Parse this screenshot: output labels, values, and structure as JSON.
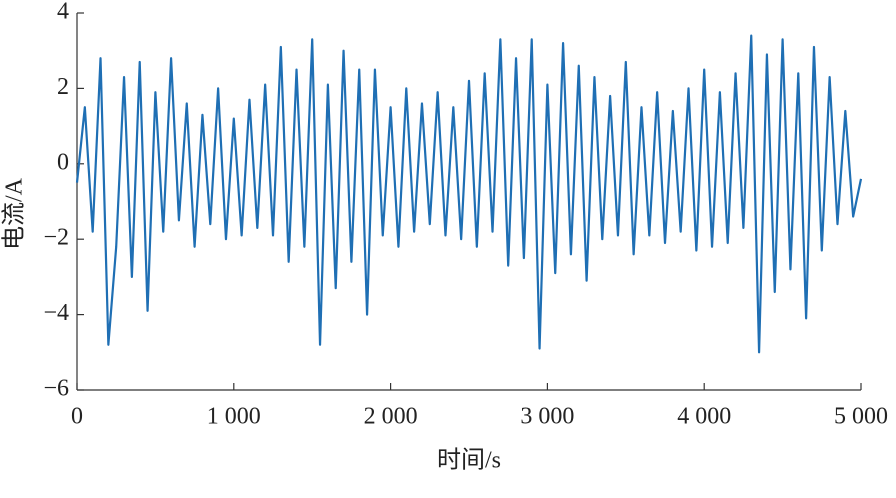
{
  "chart_data": {
    "type": "line",
    "xlabel": "时间/s",
    "ylabel": "电流/A",
    "x": [
      0,
      50,
      100,
      150,
      200,
      250,
      300,
      350,
      400,
      450,
      500,
      550,
      600,
      650,
      700,
      750,
      800,
      850,
      900,
      950,
      1000,
      1050,
      1100,
      1150,
      1200,
      1250,
      1300,
      1350,
      1400,
      1450,
      1500,
      1550,
      1600,
      1650,
      1700,
      1750,
      1800,
      1850,
      1900,
      1950,
      2000,
      2050,
      2100,
      2150,
      2200,
      2250,
      2300,
      2350,
      2400,
      2450,
      2500,
      2550,
      2600,
      2650,
      2700,
      2750,
      2800,
      2850,
      2900,
      2950,
      3000,
      3050,
      3100,
      3150,
      3200,
      3250,
      3300,
      3350,
      3400,
      3450,
      3500,
      3550,
      3600,
      3650,
      3700,
      3750,
      3800,
      3850,
      3900,
      3950,
      4000,
      4050,
      4100,
      4150,
      4200,
      4250,
      4300,
      4350,
      4400,
      4450,
      4500,
      4550,
      4600,
      4650,
      4700,
      4750,
      4800,
      4850,
      4900,
      4950,
      5000
    ],
    "series": [
      {
        "color": "#1f6fb4",
        "values": [
          -0.5,
          1.5,
          -1.8,
          2.8,
          -4.8,
          -2.2,
          2.3,
          -3.0,
          2.7,
          -3.9,
          1.9,
          -1.8,
          2.8,
          -1.5,
          1.6,
          -2.2,
          1.3,
          -1.6,
          2.0,
          -2.0,
          1.2,
          -1.9,
          1.7,
          -1.7,
          2.1,
          -1.9,
          3.1,
          -2.6,
          2.5,
          -2.2,
          3.3,
          -4.8,
          2.1,
          -3.3,
          3.0,
          -2.6,
          2.5,
          -4.0,
          2.5,
          -1.9,
          1.5,
          -2.2,
          2.0,
          -1.8,
          1.6,
          -1.6,
          1.9,
          -1.9,
          1.5,
          -2.0,
          2.2,
          -2.2,
          2.4,
          -1.8,
          3.3,
          -2.7,
          2.8,
          -2.5,
          3.3,
          -4.9,
          2.1,
          -2.9,
          3.2,
          -2.4,
          2.6,
          -3.1,
          2.3,
          -2.0,
          1.8,
          -1.9,
          2.7,
          -2.4,
          1.5,
          -1.9,
          1.9,
          -2.1,
          1.4,
          -1.8,
          2.0,
          -2.3,
          2.5,
          -2.2,
          1.9,
          -2.1,
          2.4,
          -1.7,
          3.4,
          -5.0,
          2.9,
          -3.4,
          3.3,
          -2.8,
          2.4,
          -4.1,
          3.1,
          -2.3,
          2.3,
          -1.6,
          1.4,
          -1.4,
          -0.4
        ]
      }
    ],
    "xlim": [
      0,
      5000
    ],
    "xticks": [
      0,
      {
        "value": 1000,
        "label": "1 000"
      },
      {
        "value": 2000,
        "label": "2 000"
      },
      {
        "value": 3000,
        "label": "3 000"
      },
      {
        "value": 4000,
        "label": "4 000"
      },
      {
        "value": 5000,
        "label": "5 000"
      }
    ],
    "ylim": [
      -6,
      4
    ],
    "yticks": [
      {
        "value": -6,
        "label": "−6"
      },
      {
        "value": -4,
        "label": "−4"
      },
      {
        "value": -2,
        "label": "−2"
      },
      0,
      2,
      4
    ]
  }
}
